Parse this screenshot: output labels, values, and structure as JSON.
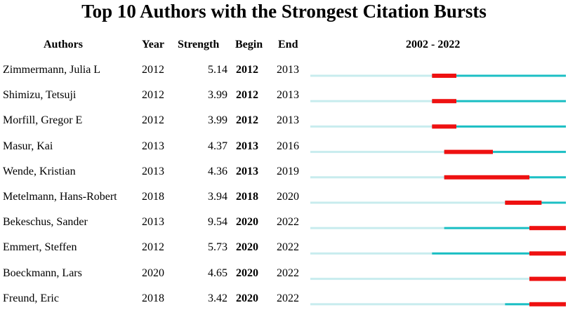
{
  "title": "Top 10 Authors with the Strongest Citation Bursts",
  "headers": {
    "authors": "Authors",
    "year": "Year",
    "strength": "Strength",
    "begin": "Begin",
    "end": "End",
    "range": "2002 - 2022"
  },
  "colors": {
    "base": "#c8ecee",
    "active": "#1cbfc4",
    "burst": "#ee1111"
  },
  "chart_data": {
    "type": "table",
    "range": [
      2002,
      2022
    ],
    "rows": [
      {
        "author": "Zimmermann, Julia L",
        "year": 2012,
        "strength": "5.14",
        "begin": 2012,
        "end": 2013
      },
      {
        "author": "Shimizu, Tetsuji",
        "year": 2012,
        "strength": "3.99",
        "begin": 2012,
        "end": 2013
      },
      {
        "author": "Morfill, Gregor E",
        "year": 2012,
        "strength": "3.99",
        "begin": 2012,
        "end": 2013
      },
      {
        "author": "Masur, Kai",
        "year": 2013,
        "strength": "4.37",
        "begin": 2013,
        "end": 2016
      },
      {
        "author": "Wende, Kristian",
        "year": 2013,
        "strength": "4.36",
        "begin": 2013,
        "end": 2019
      },
      {
        "author": "Metelmann, Hans-Robert",
        "year": 2018,
        "strength": "3.94",
        "begin": 2018,
        "end": 2020
      },
      {
        "author": "Bekeschus, Sander",
        "year": 2013,
        "strength": "9.54",
        "begin": 2020,
        "end": 2022
      },
      {
        "author": "Emmert, Steffen",
        "year": 2012,
        "strength": "5.73",
        "begin": 2020,
        "end": 2022
      },
      {
        "author": "Boeckmann, Lars",
        "year": 2020,
        "strength": "4.65",
        "begin": 2020,
        "end": 2022
      },
      {
        "author": "Freund, Eric",
        "year": 2018,
        "strength": "3.42",
        "begin": 2020,
        "end": 2022
      }
    ]
  }
}
